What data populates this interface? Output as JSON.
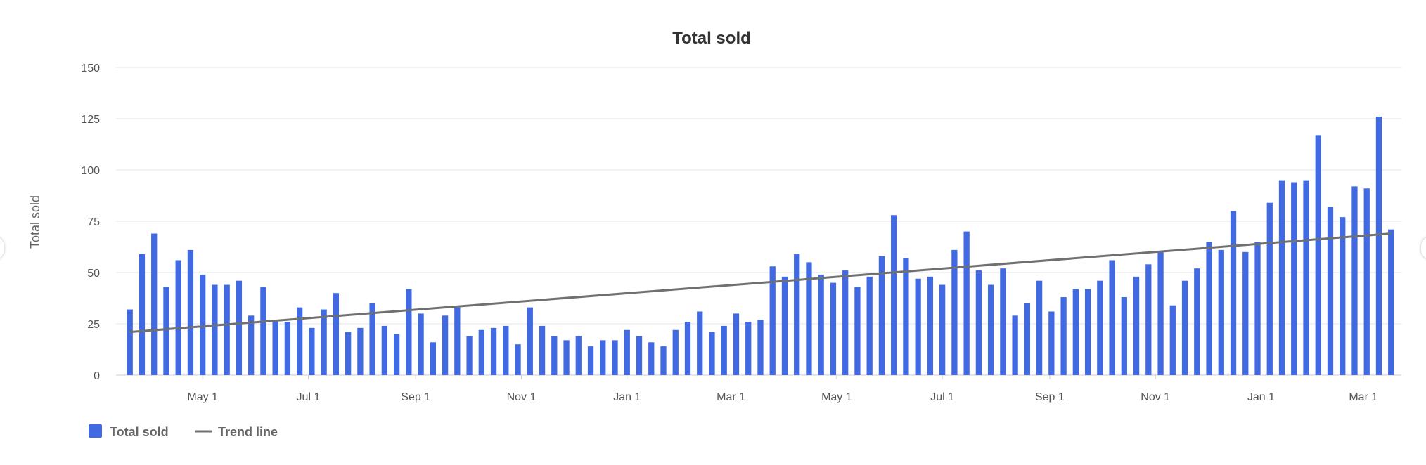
{
  "colors": {
    "bar": "#4169e1",
    "trend": "#707070",
    "grid": "#e6e6e6"
  },
  "chart_data": {
    "type": "bar",
    "title": "Total sold",
    "ylabel": "Total sold",
    "xlabel": "",
    "ylim": [
      0,
      150
    ],
    "y_ticks": [
      0,
      25,
      50,
      75,
      100,
      125,
      150
    ],
    "x_ticks": [
      {
        "label": "May 1",
        "date": "2023-05-01"
      },
      {
        "label": "Jul 1",
        "date": "2023-07-01"
      },
      {
        "label": "Sep 1",
        "date": "2023-09-01"
      },
      {
        "label": "Nov 1",
        "date": "2023-11-01"
      },
      {
        "label": "Jan 1",
        "date": "2024-01-01"
      },
      {
        "label": "Mar 1",
        "date": "2024-03-01"
      },
      {
        "label": "May 1",
        "date": "2024-05-01"
      },
      {
        "label": "Jul 1",
        "date": "2024-07-01"
      },
      {
        "label": "Sep 1",
        "date": "2024-09-01"
      },
      {
        "label": "Nov 1",
        "date": "2024-11-01"
      },
      {
        "label": "Jan 1",
        "date": "2025-01-01"
      },
      {
        "label": "Mar 1",
        "date": "2025-03-01"
      }
    ],
    "x_range": [
      "2023-03-12",
      "2025-03-23"
    ],
    "interval": "weekly",
    "first_week": "2023-03-20",
    "series": [
      {
        "name": "Total sold",
        "type": "bar",
        "values": [
          32,
          59,
          69,
          43,
          56,
          61,
          49,
          44,
          44,
          46,
          29,
          43,
          27,
          26,
          33,
          23,
          32,
          40,
          21,
          23,
          35,
          24,
          20,
          42,
          30,
          16,
          29,
          33,
          19,
          22,
          23,
          24,
          15,
          33,
          24,
          19,
          17,
          19,
          14,
          17,
          17,
          22,
          19,
          16,
          14,
          22,
          26,
          31,
          21,
          24,
          30,
          26,
          27,
          53,
          48,
          59,
          55,
          49,
          45,
          51,
          43,
          48,
          58,
          78,
          57,
          47,
          48,
          44,
          61,
          70,
          51,
          44,
          52,
          29,
          35,
          46,
          31,
          38,
          42,
          42,
          46,
          56,
          38,
          48,
          54,
          60,
          34,
          46,
          52,
          65,
          61,
          80,
          60,
          65,
          84,
          95,
          94,
          95,
          117,
          82,
          77,
          92,
          91,
          126,
          71
        ]
      },
      {
        "name": "Trend line",
        "type": "line",
        "start": {
          "date": "2023-03-20",
          "value": 21
        },
        "end": {
          "date": "2025-03-17",
          "value": 69
        }
      }
    ],
    "legend": {
      "placement": "bottom-left",
      "items": [
        "Total sold",
        "Trend line"
      ]
    },
    "grid": true
  }
}
